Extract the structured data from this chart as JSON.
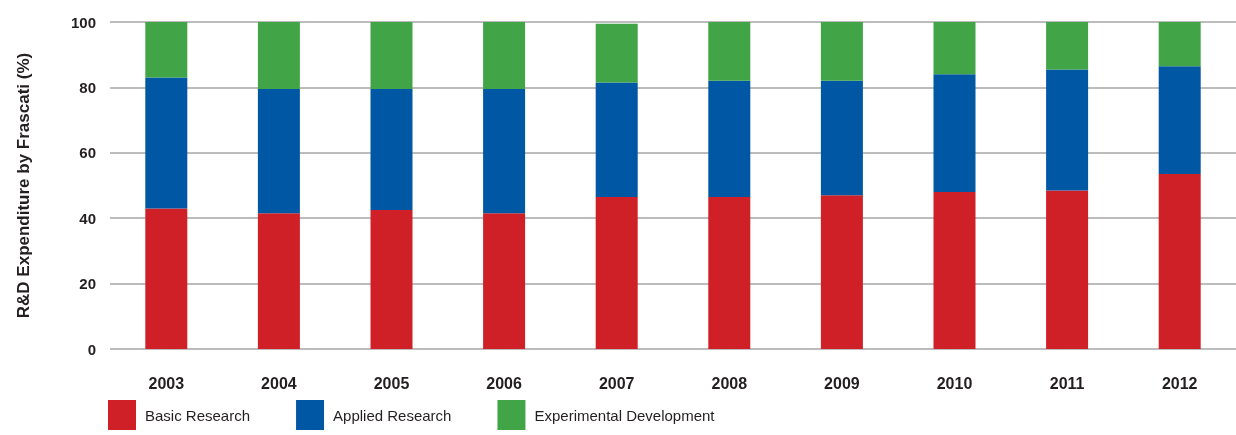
{
  "chart_data": {
    "type": "bar",
    "stacked": true,
    "ylabel": "R&D Expenditure by Frascati (%)",
    "categories": [
      "2003",
      "2004",
      "2005",
      "2006",
      "2007",
      "2008",
      "2009",
      "2010",
      "2011",
      "2012"
    ],
    "series": [
      {
        "name": "Basic Research",
        "color": "#cf2027",
        "values": [
          43,
          41.5,
          42.5,
          41.5,
          46.5,
          46.5,
          47,
          48,
          48.5,
          53.5
        ]
      },
      {
        "name": "Applied Research",
        "color": "#0057a4",
        "values": [
          40,
          38,
          37,
          38,
          35,
          35.5,
          35,
          36,
          37,
          33
        ]
      },
      {
        "name": "Experimental Development",
        "color": "#41a548",
        "values": [
          17,
          20.5,
          20.5,
          20.5,
          18,
          18,
          18,
          16,
          14.5,
          13.5
        ]
      }
    ],
    "ylim": [
      0,
      100
    ],
    "yticks": [
      0,
      20,
      40,
      60,
      80,
      100
    ],
    "grid": "y",
    "legend": "bottom left"
  }
}
